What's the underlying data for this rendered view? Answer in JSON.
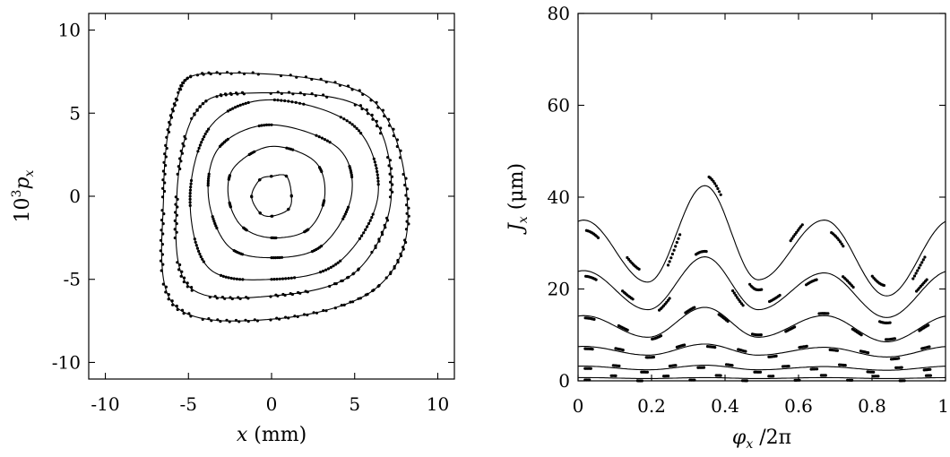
{
  "chart_data": [
    {
      "type": "scatter",
      "panel": "left",
      "xlabel_var": "x",
      "xlabel_unit": " (mm)",
      "ylabel_prefix": "10",
      "ylabel_exp": "3",
      "ylabel_var": "p",
      "ylabel_sub": "x",
      "xlim": [
        -11,
        11
      ],
      "ylim": [
        -11,
        11
      ],
      "xticks": [
        -10,
        -5,
        0,
        5,
        10
      ],
      "yticks": [
        -10,
        -5,
        0,
        5,
        10
      ],
      "xtick_labels": [
        "-10",
        "-5",
        "0",
        "5",
        "10"
      ],
      "ytick_labels": [
        "-10",
        "-5",
        "0",
        "5",
        "10"
      ],
      "grid": false,
      "series": [
        {
          "kind": "closed-curve+dots",
          "values": [
            [
              0,
              -1.2
            ],
            [
              1,
              -0.8
            ],
            [
              1.2,
              0
            ],
            [
              0.9,
              1.2
            ],
            [
              0,
              1.2
            ],
            [
              -0.7,
              1
            ],
            [
              -1.2,
              0
            ],
            [
              -0.7,
              -1
            ]
          ]
        },
        {
          "kind": "closed-curve+dots",
          "values": [
            [
              0,
              -2.5
            ],
            [
              2.2,
              -2
            ],
            [
              3.2,
              0
            ],
            [
              2.6,
              2.1
            ],
            [
              0,
              3
            ],
            [
              -2.2,
              1.8
            ],
            [
              -2.6,
              0
            ],
            [
              -1.8,
              -1.8
            ]
          ]
        },
        {
          "kind": "closed-curve+dots",
          "values": [
            [
              0,
              -3.7
            ],
            [
              3,
              -3
            ],
            [
              4.8,
              0
            ],
            [
              4,
              2.9
            ],
            [
              0,
              4.3
            ],
            [
              -3.1,
              3
            ],
            [
              -3.8,
              0
            ],
            [
              -2.6,
              -3
            ]
          ]
        },
        {
          "kind": "closed-curve+dots",
          "values": [
            [
              0,
              -5
            ],
            [
              4,
              -4
            ],
            [
              6.4,
              0
            ],
            [
              5,
              4.2
            ],
            [
              0,
              5.8
            ],
            [
              -3.6,
              4.3
            ],
            [
              -4.9,
              0
            ],
            [
              -3.8,
              -4.3
            ]
          ]
        },
        {
          "kind": "closed-curve+dots",
          "values": [
            [
              0,
              -6
            ],
            [
              5,
              -4.6
            ],
            [
              7.2,
              0
            ],
            [
              5.5,
              5.3
            ],
            [
              -1.6,
              6.2
            ],
            [
              -4.6,
              5
            ],
            [
              -5.7,
              0
            ],
            [
              -5,
              -5.4
            ]
          ]
        },
        {
          "kind": "closed-curve+dots",
          "values": [
            [
              0,
              -7.4
            ],
            [
              6.2,
              -5.6
            ],
            [
              8.2,
              -1
            ],
            [
              5.8,
              6
            ],
            [
              -3.6,
              7.4
            ],
            [
              -5.8,
              5.6
            ],
            [
              -6.5,
              0
            ],
            [
              -5.9,
              -6.5
            ]
          ]
        }
      ]
    },
    {
      "type": "line",
      "panel": "right",
      "xlabel_var": "φ",
      "xlabel_sub": "x",
      "xlabel_rest": " /2π",
      "ylabel_var": "J",
      "ylabel_sub": "x",
      "ylabel_unit": " (μm)",
      "xlim": [
        0,
        1
      ],
      "ylim": [
        0,
        80
      ],
      "xticks": [
        0,
        0.2,
        0.4,
        0.6,
        0.8,
        1
      ],
      "yticks": [
        0,
        20,
        40,
        60,
        80
      ],
      "xtick_labels": [
        "0",
        "0.2",
        "0.4",
        "0.6",
        "0.8",
        "1"
      ],
      "ytick_labels": [
        "0",
        "20",
        "40",
        "60",
        "80"
      ],
      "grid": false,
      "series": [
        {
          "peaks_phi": [
            0.015,
            0.345,
            0.67
          ],
          "peaks_J": [
            35,
            42.5,
            35
          ],
          "troughs_phi": [
            0.19,
            0.49,
            0.84
          ],
          "troughs_J": [
            21.5,
            22,
            18.5
          ]
        },
        {
          "peaks_phi": [
            0.015,
            0.345,
            0.67
          ],
          "peaks_J": [
            24,
            27,
            23.5
          ],
          "troughs_phi": [
            0.19,
            0.49,
            0.84
          ],
          "troughs_J": [
            15.5,
            15.5,
            13.8
          ]
        },
        {
          "peaks_phi": [
            0.015,
            0.345,
            0.67
          ],
          "peaks_J": [
            14.2,
            16,
            14.2
          ],
          "troughs_phi": [
            0.19,
            0.49,
            0.84
          ],
          "troughs_J": [
            9.5,
            9.5,
            8.5
          ]
        },
        {
          "peaks_phi": [
            0.015,
            0.345,
            0.67
          ],
          "peaks_J": [
            7.5,
            8,
            7.3
          ],
          "troughs_phi": [
            0.19,
            0.49,
            0.84
          ],
          "troughs_J": [
            5.6,
            5.6,
            5.2
          ]
        },
        {
          "peaks_phi": [
            0.015,
            0.345,
            0.67
          ],
          "peaks_J": [
            3.2,
            3.4,
            3.1
          ],
          "troughs_phi": [
            0.19,
            0.49,
            0.84
          ],
          "troughs_J": [
            2.4,
            2.4,
            2.3
          ]
        },
        {
          "peaks_phi": [
            0.015,
            0.345,
            0.67
          ],
          "peaks_J": [
            0.7,
            0.7,
            0.7
          ],
          "troughs_phi": [
            0.19,
            0.49,
            0.84
          ],
          "troughs_J": [
            0.5,
            0.5,
            0.5
          ]
        }
      ]
    }
  ]
}
